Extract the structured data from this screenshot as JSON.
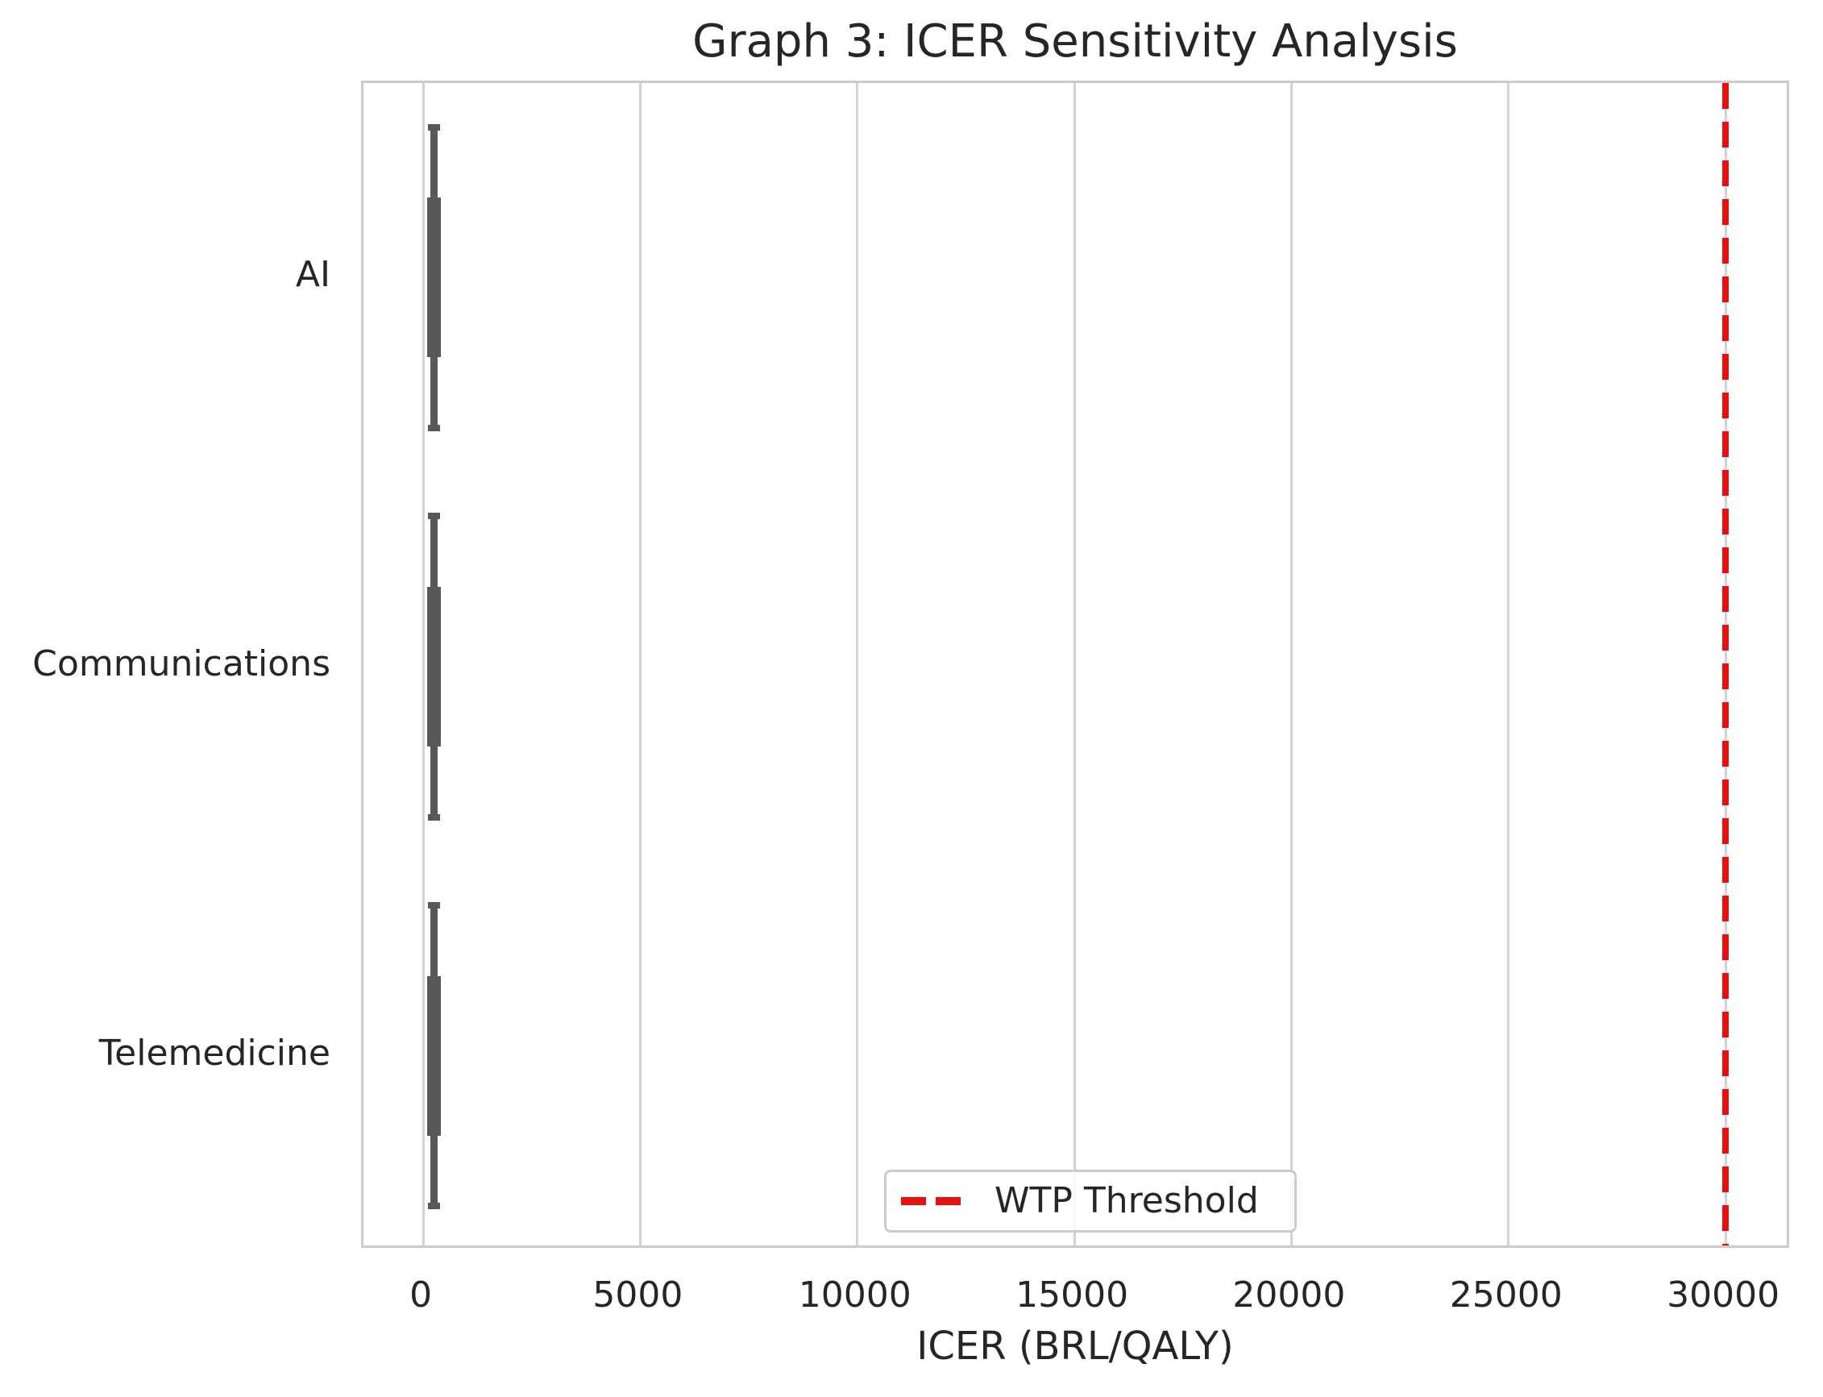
{
  "figure": {
    "title": "Graph 3: ICER Sensitivity Analysis"
  },
  "axes": {
    "x_title": "ICER (BRL/QALY)",
    "x_tick_labels": [
      "0",
      "5000",
      "10000",
      "15000",
      "20000",
      "25000",
      "30000"
    ],
    "y_tick_labels": [
      "AI",
      "Communications",
      "Telemedicine"
    ]
  },
  "legend": {
    "wtp_label": "WTP Threshold"
  },
  "colors": {
    "background": "#ffffff",
    "text": "#262626",
    "grid": "#d4d4d4",
    "spine": "#cccccc",
    "box": "#58585a",
    "threshold_red": "#e8100f"
  },
  "chart_data": {
    "type": "boxplot",
    "title": "Graph 3: ICER Sensitivity Analysis",
    "xlabel": "ICER (BRL/QALY)",
    "ylabel": "",
    "categories": [
      "AI",
      "Communications",
      "Telemedicine"
    ],
    "x_ticks": [
      0,
      5000,
      10000,
      15000,
      20000,
      25000,
      30000
    ],
    "xlim": [
      -1375,
      31520
    ],
    "grid": "vertical gridlines only (whitegrid style)",
    "legend_position": "lower center, inside axes",
    "wtp_threshold_x": 30000,
    "series": [
      {
        "category": "AI",
        "icer_center": 250,
        "box_icer_range": [
          90,
          410
        ],
        "whisker_icer_range": [
          170,
          335
        ]
      },
      {
        "category": "Communications",
        "icer_center": 250,
        "box_icer_range": [
          90,
          410
        ],
        "whisker_icer_range": [
          170,
          335
        ]
      },
      {
        "category": "Telemedicine",
        "icer_center": 250,
        "box_icer_range": [
          90,
          410
        ],
        "whisker_icer_range": [
          170,
          335
        ]
      }
    ],
    "glyph_band_fractions": {
      "box_height": 0.41,
      "whisker_height": 0.79
    }
  }
}
